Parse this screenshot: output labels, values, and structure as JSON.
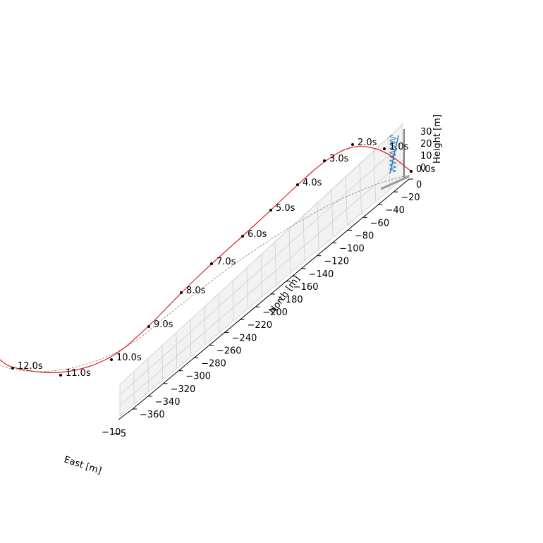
{
  "chart_data": {
    "type": "line",
    "projection": "3d",
    "axes": {
      "x": {
        "label": "East [m]",
        "ticks": [
          "−10",
          "−5"
        ]
      },
      "y": {
        "label": "North [m]",
        "range": [
          -370,
          0
        ],
        "ticks": [
          "0",
          "−20",
          "−40",
          "−60",
          "−80",
          "−100",
          "−120",
          "−140",
          "−160",
          "−180",
          "−200",
          "−220",
          "−240",
          "−260",
          "−280",
          "−300",
          "−320",
          "−340",
          "−360"
        ]
      },
      "z": {
        "label": "Height [m]",
        "range": [
          0,
          30
        ],
        "ticks": [
          "0",
          "10",
          "20",
          "30"
        ]
      }
    },
    "grid": true,
    "series": [
      {
        "role": "flight-path",
        "color": "#d62728",
        "time_markers": [
          "0.0s",
          "1.0s",
          "2.0s",
          "3.0s",
          "4.0s",
          "5.0s",
          "6.0s",
          "7.0s",
          "8.0s",
          "9.0s",
          "10.0s",
          "11.0s",
          "12.0s"
        ]
      },
      {
        "role": "ground-track",
        "color": "#808080",
        "style": "dashed"
      },
      {
        "role": "launch-rail",
        "color": "#1f77b4"
      }
    ]
  }
}
